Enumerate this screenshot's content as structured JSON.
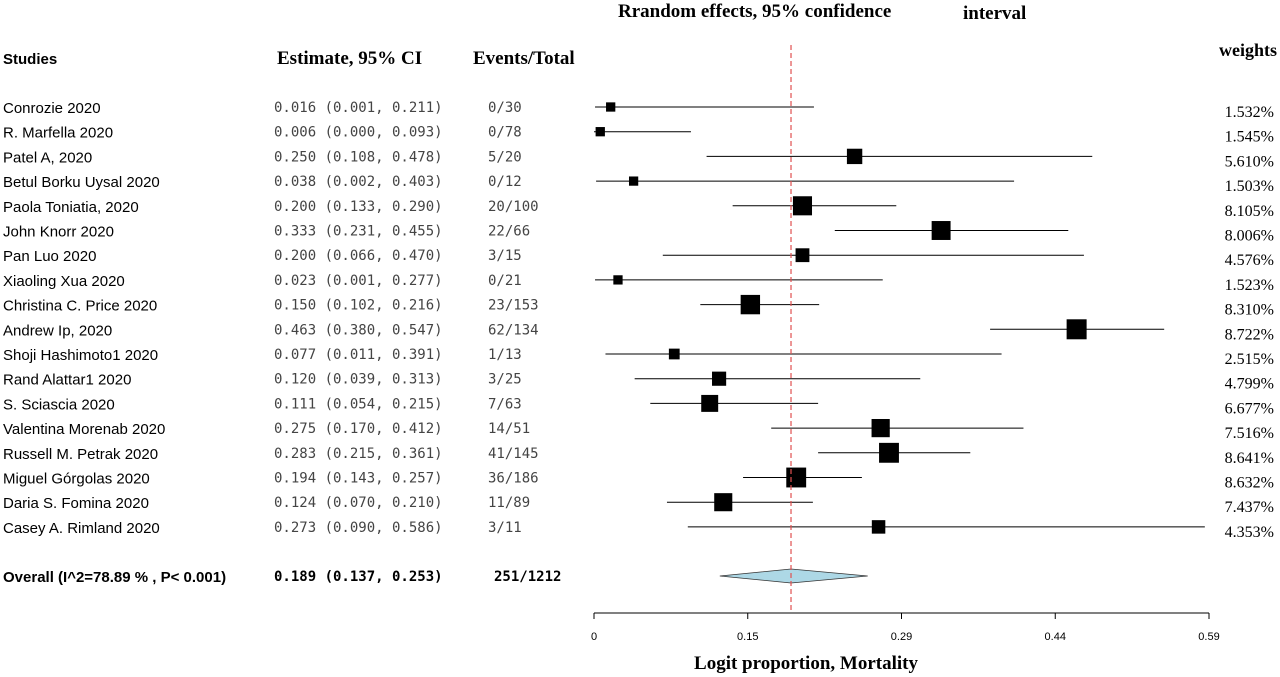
{
  "chart_data": {
    "type": "forest",
    "title": "Rrandom effects, 95% confidence",
    "title_suffix": "interval",
    "headers": {
      "studies": "Studies",
      "estimate": "Estimate, 95% CI",
      "events": "Events/Total",
      "weights": "weights"
    },
    "xlabel": "Logit proportion, Mortality",
    "xlim": [
      0,
      0.59
    ],
    "xticks": [
      "0",
      "0.15",
      "0.29",
      "0.44",
      "0.59"
    ],
    "reference_line": 0.189,
    "reference_color": "#e05050",
    "diamond_color": "#add8e6",
    "studies": [
      {
        "name": "Conrozie 2020",
        "estimate": 0.016,
        "lower": 0.001,
        "upper": 0.211,
        "ci_text": "0.016 (0.001, 0.211)",
        "events_total": "0/30",
        "weight": "1.532%"
      },
      {
        "name": "R. Marfella 2020",
        "estimate": 0.006,
        "lower": 0.0,
        "upper": 0.093,
        "ci_text": "0.006 (0.000, 0.093)",
        "events_total": "0/78",
        "weight": "1.545%"
      },
      {
        "name": "Patel A, 2020",
        "estimate": 0.25,
        "lower": 0.108,
        "upper": 0.478,
        "ci_text": "0.250 (0.108, 0.478)",
        "events_total": "5/20",
        "weight": "5.610%"
      },
      {
        "name": "Betul Borku Uysal 2020",
        "estimate": 0.038,
        "lower": 0.002,
        "upper": 0.403,
        "ci_text": "0.038 (0.002, 0.403)",
        "events_total": "0/12",
        "weight": "1.503%"
      },
      {
        "name": "Paola Toniatia, 2020",
        "estimate": 0.2,
        "lower": 0.133,
        "upper": 0.29,
        "ci_text": "0.200 (0.133, 0.290)",
        "events_total": "20/100",
        "weight": "8.105%"
      },
      {
        "name": "John Knorr 2020",
        "estimate": 0.333,
        "lower": 0.231,
        "upper": 0.455,
        "ci_text": "0.333 (0.231, 0.455)",
        "events_total": "22/66",
        "weight": "8.006%"
      },
      {
        "name": "Pan Luo 2020",
        "estimate": 0.2,
        "lower": 0.066,
        "upper": 0.47,
        "ci_text": "0.200 (0.066, 0.470)",
        "events_total": "3/15",
        "weight": "4.576%"
      },
      {
        "name": "Xiaoling Xua 2020",
        "estimate": 0.023,
        "lower": 0.001,
        "upper": 0.277,
        "ci_text": "0.023 (0.001, 0.277)",
        "events_total": "0/21",
        "weight": "1.523%"
      },
      {
        "name": "Christina C. Price 2020",
        "estimate": 0.15,
        "lower": 0.102,
        "upper": 0.216,
        "ci_text": "0.150 (0.102, 0.216)",
        "events_total": "23/153",
        "weight": "8.310%"
      },
      {
        "name": "Andrew Ip, 2020",
        "estimate": 0.463,
        "lower": 0.38,
        "upper": 0.547,
        "ci_text": "0.463 (0.380, 0.547)",
        "events_total": "62/134",
        "weight": "8.722%"
      },
      {
        "name": "Shoji Hashimoto1 2020",
        "estimate": 0.077,
        "lower": 0.011,
        "upper": 0.391,
        "ci_text": "0.077 (0.011, 0.391)",
        "events_total": "1/13",
        "weight": "2.515%"
      },
      {
        "name": "Rand Alattar1 2020",
        "estimate": 0.12,
        "lower": 0.039,
        "upper": 0.313,
        "ci_text": "0.120 (0.039, 0.313)",
        "events_total": "3/25",
        "weight": "4.799%"
      },
      {
        "name": "S. Sciascia 2020",
        "estimate": 0.111,
        "lower": 0.054,
        "upper": 0.215,
        "ci_text": "0.111 (0.054, 0.215)",
        "events_total": "7/63",
        "weight": "6.677%"
      },
      {
        "name": "Valentina Morenab 2020",
        "estimate": 0.275,
        "lower": 0.17,
        "upper": 0.412,
        "ci_text": "0.275 (0.170, 0.412)",
        "events_total": "14/51",
        "weight": "7.516%"
      },
      {
        "name": "Russell M. Petrak 2020",
        "estimate": 0.283,
        "lower": 0.215,
        "upper": 0.361,
        "ci_text": "0.283 (0.215, 0.361)",
        "events_total": "41/145",
        "weight": "8.641%"
      },
      {
        "name": "Miguel Górgolas 2020",
        "estimate": 0.194,
        "lower": 0.143,
        "upper": 0.257,
        "ci_text": "0.194 (0.143, 0.257)",
        "events_total": "36/186",
        "weight": "8.632%"
      },
      {
        "name": "Daria S. Fomina 2020",
        "estimate": 0.124,
        "lower": 0.07,
        "upper": 0.21,
        "ci_text": "0.124 (0.070, 0.210)",
        "events_total": "11/89",
        "weight": "7.437%"
      },
      {
        "name": "Casey A. Rimland 2020",
        "estimate": 0.273,
        "lower": 0.09,
        "upper": 0.586,
        "ci_text": "0.273 (0.090, 0.586)",
        "events_total": "3/11",
        "weight": "4.353%"
      }
    ],
    "overall": {
      "label": "Overall (I^2=78.89 % , P< 0.001)",
      "estimate": 0.189,
      "lower": 0.137,
      "upper": 0.253,
      "ci_text": "0.189 (0.137, 0.253)",
      "events_total": "251/1212"
    }
  }
}
